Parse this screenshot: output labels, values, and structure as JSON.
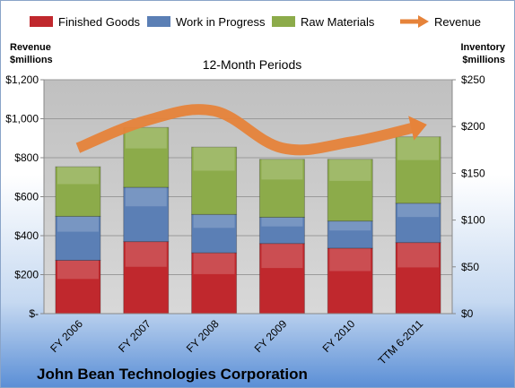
{
  "chart_data": {
    "type": "bar",
    "stacked": true,
    "subtitle": "12-Month Periods",
    "company": "John Bean Technologies Corporation",
    "categories": [
      "FY 2006",
      "FY 2007",
      "FY 2008",
      "FY 2009",
      "FY 2010",
      "TTM 6-2011"
    ],
    "left_axis": {
      "title_line1": "Revenue",
      "title_line2": "$millions",
      "ylim": [
        0,
        1200
      ],
      "ticks": [
        0,
        200,
        400,
        600,
        800,
        1000,
        1200
      ],
      "tick_labels": [
        "$-",
        "$200",
        "$400",
        "$600",
        "$800",
        "$1,000",
        "$1,200"
      ]
    },
    "right_axis": {
      "title_line1": "Inventory",
      "title_line2": "$millions",
      "ylim": [
        0,
        250
      ],
      "ticks": [
        0,
        50,
        100,
        150,
        200,
        250
      ],
      "tick_labels": [
        "$0",
        "$50",
        "$100",
        "$150",
        "$200",
        "$250"
      ]
    },
    "series": [
      {
        "name": "Finished Goods",
        "axis": "right",
        "color": "#c0282d",
        "values": [
          57,
          77,
          65,
          75,
          70,
          76
        ]
      },
      {
        "name": "Work in Progress",
        "axis": "right",
        "color": "#5b7fb5",
        "values": [
          47,
          58,
          41,
          28,
          29,
          42
        ]
      },
      {
        "name": "Raw Materials",
        "axis": "right",
        "color": "#8cab4a",
        "values": [
          53,
          64,
          72,
          62,
          66,
          71
        ]
      },
      {
        "name": "Revenue",
        "axis": "left",
        "type": "line",
        "color": "#e6833a",
        "values": [
          850,
          990,
          1040,
          850,
          880,
          960
        ]
      }
    ],
    "grid": true,
    "legend_position": "top"
  }
}
